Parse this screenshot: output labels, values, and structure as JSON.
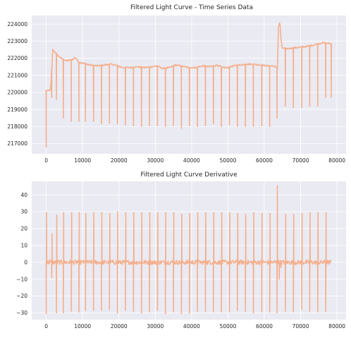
{
  "colors": {
    "line": "#f4b08e",
    "plot_bg": "#eaeaf2",
    "grid": "#ffffff"
  },
  "chart_data": [
    {
      "type": "line",
      "title": "Filtered Light Curve - Time Series Data",
      "xlabel": "",
      "ylabel": "",
      "xlim": [
        -4000,
        82500
      ],
      "ylim": [
        216400,
        224500
      ],
      "xticks": [
        0,
        10000,
        20000,
        30000,
        40000,
        50000,
        60000,
        70000,
        80000
      ],
      "yticks": [
        217000,
        218000,
        219000,
        220000,
        221000,
        222000,
        223000,
        224000
      ],
      "grid": true,
      "base": [
        [
          0,
          220100
        ],
        [
          500,
          220100
        ],
        [
          1200,
          220150
        ],
        [
          1800,
          222500
        ],
        [
          2800,
          222250
        ],
        [
          4000,
          222000
        ],
        [
          5500,
          221850
        ],
        [
          7000,
          221900
        ],
        [
          8000,
          222050
        ],
        [
          9000,
          221750
        ],
        [
          10500,
          221700
        ],
        [
          12000,
          221600
        ],
        [
          14000,
          221550
        ],
        [
          16000,
          221600
        ],
        [
          17500,
          221650
        ],
        [
          19000,
          221600
        ],
        [
          21000,
          221450
        ],
        [
          23000,
          221450
        ],
        [
          25000,
          221500
        ],
        [
          27000,
          221450
        ],
        [
          29000,
          221500
        ],
        [
          30500,
          221550
        ],
        [
          32000,
          221400
        ],
        [
          34000,
          221450
        ],
        [
          35500,
          221600
        ],
        [
          37000,
          221550
        ],
        [
          39000,
          221450
        ],
        [
          41000,
          221450
        ],
        [
          43000,
          221550
        ],
        [
          45000,
          221500
        ],
        [
          47000,
          221600
        ],
        [
          48500,
          221450
        ],
        [
          50000,
          221450
        ],
        [
          51500,
          221550
        ],
        [
          53000,
          221600
        ],
        [
          55000,
          221650
        ],
        [
          57000,
          221650
        ],
        [
          59000,
          221600
        ],
        [
          61000,
          221550
        ],
        [
          62500,
          221550
        ],
        [
          63700,
          221400
        ],
        [
          63800,
          223800
        ],
        [
          64300,
          224100
        ],
        [
          64600,
          223100
        ],
        [
          64900,
          222600
        ],
        [
          66000,
          222550
        ],
        [
          68000,
          222600
        ],
        [
          70000,
          222650
        ],
        [
          72000,
          222700
        ],
        [
          74000,
          222800
        ],
        [
          76000,
          222900
        ],
        [
          78500,
          222850
        ]
      ],
      "dips": [
        [
          0,
          216800
        ],
        [
          1500,
          219700
        ],
        [
          2800,
          219600
        ],
        [
          4700,
          218500
        ],
        [
          6900,
          218300
        ],
        [
          9000,
          218300
        ],
        [
          10800,
          218300
        ],
        [
          13000,
          218300
        ],
        [
          15200,
          218150
        ],
        [
          17400,
          218200
        ],
        [
          19600,
          218150
        ],
        [
          21800,
          218100
        ],
        [
          24000,
          218050
        ],
        [
          26200,
          218000
        ],
        [
          28400,
          218050
        ],
        [
          30600,
          218050
        ],
        [
          32800,
          218000
        ],
        [
          35000,
          218050
        ],
        [
          37200,
          217900
        ],
        [
          39400,
          218050
        ],
        [
          41600,
          218000
        ],
        [
          43800,
          218050
        ],
        [
          46000,
          218150
        ],
        [
          48200,
          218000
        ],
        [
          50400,
          218100
        ],
        [
          52600,
          218000
        ],
        [
          54800,
          218000
        ],
        [
          57000,
          218000
        ],
        [
          59300,
          218050
        ],
        [
          61500,
          218000
        ],
        [
          63500,
          218500
        ],
        [
          65800,
          219200
        ],
        [
          68000,
          219100
        ],
        [
          70300,
          219100
        ],
        [
          72500,
          219200
        ],
        [
          74700,
          219200
        ],
        [
          76900,
          219700
        ],
        [
          78400,
          219700
        ]
      ]
    },
    {
      "type": "line",
      "title": "Filtered Light Curve Derivative",
      "xlabel": "",
      "ylabel": "",
      "xlim": [
        -4000,
        82500
      ],
      "ylim": [
        -34,
        48
      ],
      "xticks": [
        0,
        10000,
        20000,
        30000,
        40000,
        50000,
        60000,
        70000,
        80000
      ],
      "yticks": [
        -30,
        -20,
        -10,
        0,
        10,
        20,
        30,
        40
      ],
      "grid": true,
      "spikes": [
        [
          0,
          29.5,
          -30.5
        ],
        [
          1500,
          17,
          -9
        ],
        [
          2800,
          28,
          -30
        ],
        [
          4700,
          29.5,
          -30
        ],
        [
          6900,
          29.5,
          -29
        ],
        [
          9000,
          29.5,
          -29.5
        ],
        [
          10800,
          29,
          -28.5
        ],
        [
          13000,
          29.5,
          -28.5
        ],
        [
          15200,
          29.5,
          -28.5
        ],
        [
          17400,
          29,
          -28
        ],
        [
          19600,
          30,
          -30
        ],
        [
          21800,
          29.5,
          -28.5
        ],
        [
          24000,
          29.5,
          -29
        ],
        [
          26200,
          29.5,
          -30
        ],
        [
          28400,
          29.5,
          -29.5
        ],
        [
          30600,
          29.5,
          -28.5
        ],
        [
          32800,
          29.5,
          -30.5
        ],
        [
          35000,
          29.5,
          -29.5
        ],
        [
          37200,
          28.5,
          -30.5
        ],
        [
          39400,
          29,
          -30
        ],
        [
          41600,
          29.5,
          -29
        ],
        [
          43800,
          29.5,
          -29
        ],
        [
          46000,
          29.5,
          -29.5
        ],
        [
          48200,
          29.5,
          -29.5
        ],
        [
          50400,
          29.5,
          -29.5
        ],
        [
          52600,
          29,
          -28.5
        ],
        [
          54800,
          28.5,
          -29
        ],
        [
          57000,
          29.5,
          -30
        ],
        [
          59300,
          29,
          -29.5
        ],
        [
          61500,
          29,
          -29.5
        ],
        [
          63500,
          45.5,
          -30
        ],
        [
          65800,
          28.5,
          -29
        ],
        [
          68000,
          28.5,
          -29.5
        ],
        [
          70300,
          29,
          -28
        ],
        [
          72500,
          29.5,
          -29
        ],
        [
          74700,
          29.5,
          -29.5
        ],
        [
          76900,
          29.5,
          -29
        ],
        [
          78400,
          28,
          -28.5
        ]
      ],
      "extras": [
        [
          64100,
          -10
        ],
        [
          64600,
          -3
        ],
        [
          1000,
          1.5
        ]
      ]
    }
  ]
}
